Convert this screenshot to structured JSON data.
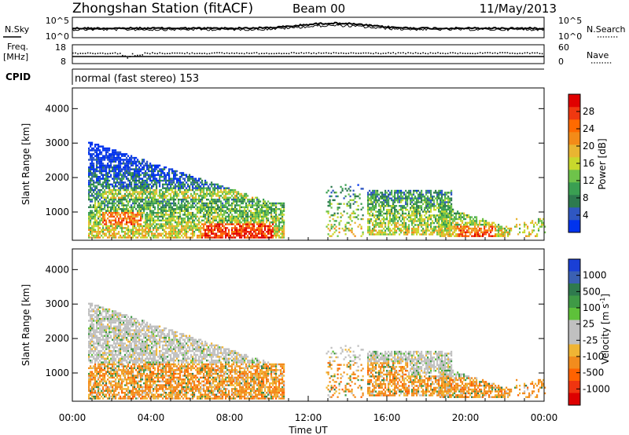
{
  "header": {
    "title": "Zhongshan Station (fitACF)",
    "beam": "Beam 00",
    "date": "11/May/2013"
  },
  "chart_data": [
    {
      "type": "line",
      "panel": "noise",
      "left_label": "N.Sky",
      "right_label": "N.Search",
      "left_ticks": [
        "10^5",
        "10^0"
      ],
      "right_ticks": [
        "10^5",
        "10^0"
      ],
      "x_range_hours": [
        0,
        24
      ]
    },
    {
      "type": "scatter",
      "panel": "frequency",
      "left_label": "Freq.",
      "left_unit": "[MHz]",
      "right_label": "Nave",
      "left_ticks": [
        18,
        8
      ],
      "right_ticks": [
        60,
        0
      ],
      "x_range_hours": [
        0,
        24
      ]
    },
    {
      "type": "table",
      "panel": "cpid",
      "label": "CPID",
      "mode_text": "normal (fast stereo) 153"
    },
    {
      "type": "heatmap",
      "panel": "power",
      "ylabel": "Slant Range [km]",
      "yticks": [
        1000,
        2000,
        3000,
        4000
      ],
      "ylim": [
        180,
        4600
      ],
      "xlim": [
        0,
        24
      ],
      "colorbar_label": "Power [dB]",
      "colorbar_ticks": [
        4,
        8,
        12,
        16,
        20,
        24,
        28
      ],
      "colorbar_colors": [
        "#0033ee",
        "#2f57c2",
        "#2d7a4f",
        "#3a9f52",
        "#6ec34a",
        "#c8d82c",
        "#e9b531",
        "#f38b18",
        "#ff6a00",
        "#f03810",
        "#e00000"
      ]
    },
    {
      "type": "heatmap",
      "panel": "velocity",
      "ylabel": "Slant Range [km]",
      "yticks": [
        1000,
        2000,
        3000,
        4000
      ],
      "ylim": [
        180,
        4600
      ],
      "xlim": [
        0,
        24
      ],
      "xlabel": "Time UT",
      "xticks": [
        "00:00",
        "04:00",
        "08:00",
        "12:00",
        "16:00",
        "20:00",
        "00:00"
      ],
      "colorbar_label": "Velocity [m s^-1]",
      "colorbar_ticks": [
        "1000",
        "500",
        "100",
        "25",
        "-25",
        "-100",
        "-500",
        "-1000"
      ],
      "colorbar_colors": [
        "#1a3fd6",
        "#3a60b3",
        "#2f7a4e",
        "#3f9a46",
        "#5ec13a",
        "#c0c0c0",
        "#c0c0c0",
        "#f0b534",
        "#f28c1d",
        "#ff6200",
        "#ef3510",
        "#dd0000"
      ]
    }
  ]
}
